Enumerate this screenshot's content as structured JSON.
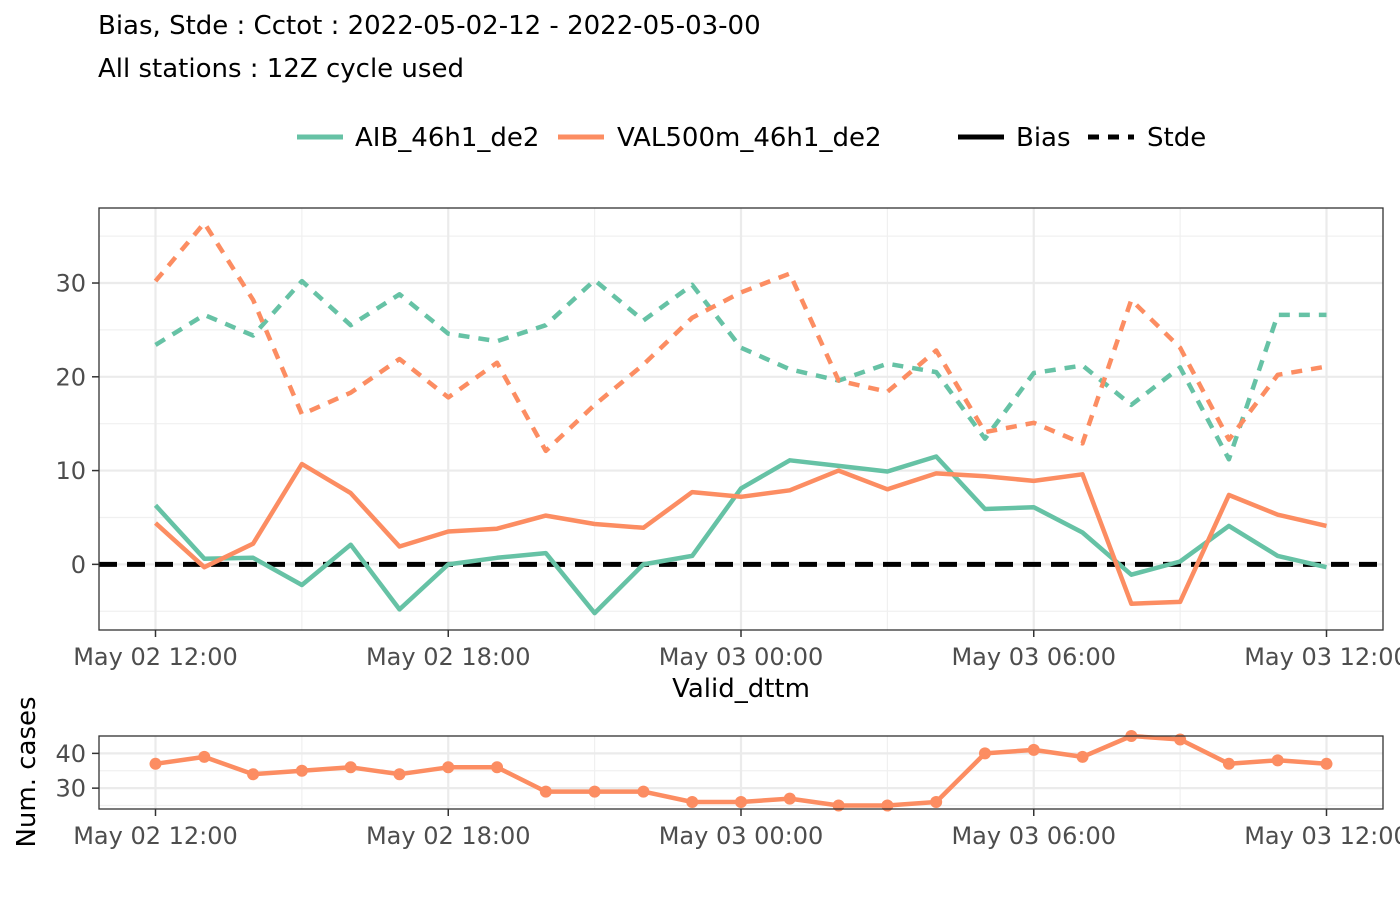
{
  "header": {
    "title": "Bias, Stde : Cctot : 2022-05-02-12 - 2022-05-03-00",
    "subtitle": "All stations : 12Z cycle used"
  },
  "legend": {
    "models": [
      {
        "label": "AIB_46h1_de2",
        "color": "#66C2A5"
      },
      {
        "label": "VAL500m_46h1_de2",
        "color": "#FC8D62"
      }
    ],
    "scores": [
      {
        "label": "Bias",
        "dash": "solid"
      },
      {
        "label": "Stde",
        "dash": "dashed"
      }
    ],
    "position": "top"
  },
  "chart_data": [
    {
      "type": "line",
      "x": [
        "May 02 12:00",
        "May 02 13:00",
        "May 02 14:00",
        "May 02 15:00",
        "May 02 16:00",
        "May 02 17:00",
        "May 02 18:00",
        "May 02 19:00",
        "May 02 20:00",
        "May 02 21:00",
        "May 02 22:00",
        "May 02 23:00",
        "May 03 00:00",
        "May 03 01:00",
        "May 03 02:00",
        "May 03 03:00",
        "May 03 04:00",
        "May 03 05:00",
        "May 03 06:00",
        "May 03 07:00",
        "May 03 08:00",
        "May 03 09:00",
        "May 03 10:00",
        "May 03 11:00",
        "May 03 12:00"
      ],
      "xticks": [
        "May 02 12:00",
        "May 02 18:00",
        "May 03 00:00",
        "May 03 06:00",
        "May 03 12:00"
      ],
      "xlabel": "Valid_dttm",
      "ylabel": "",
      "ylim": [
        -7,
        38
      ],
      "yticks": [
        0,
        10,
        20,
        30
      ],
      "grid": true,
      "reference_line": {
        "y": 0,
        "style": "dashed",
        "color": "#000000"
      },
      "series": [
        {
          "name": "AIB_46h1_de2",
          "score": "Bias",
          "color": "#66C2A5",
          "values": [
            6.3,
            0.6,
            0.7,
            -2.2,
            2.1,
            -4.8,
            0.0,
            0.7,
            1.2,
            -5.2,
            0.0,
            0.9,
            8.1,
            11.1,
            10.5,
            9.9,
            11.5,
            5.9,
            6.1,
            3.4,
            -1.1,
            0.3,
            4.1,
            0.9,
            -0.3
          ]
        },
        {
          "name": "VAL500m_46h1_de2",
          "score": "Bias",
          "color": "#FC8D62",
          "values": [
            4.4,
            -0.3,
            2.2,
            10.7,
            7.6,
            1.9,
            3.5,
            3.8,
            5.2,
            4.3,
            3.9,
            7.7,
            7.2,
            7.9,
            10.0,
            8.0,
            9.7,
            9.4,
            8.9,
            9.6,
            -4.2,
            -4.0,
            7.4,
            5.3,
            4.1
          ]
        },
        {
          "name": "AIB_46h1_de2",
          "score": "Stde",
          "color": "#66C2A5",
          "values": [
            23.4,
            26.6,
            24.4,
            30.2,
            25.5,
            28.8,
            24.6,
            23.8,
            25.5,
            30.3,
            26.0,
            29.8,
            23.1,
            20.8,
            19.6,
            21.4,
            20.5,
            13.4,
            20.4,
            21.2,
            17.0,
            21.0,
            11.2,
            26.6,
            26.6
          ]
        },
        {
          "name": "VAL500m_46h1_de2",
          "score": "Stde",
          "color": "#FC8D62",
          "values": [
            30.2,
            36.4,
            28.2,
            16.0,
            18.3,
            21.9,
            17.8,
            21.5,
            12.1,
            17.0,
            21.3,
            26.3,
            29.0,
            31.0,
            19.6,
            18.4,
            22.8,
            14.1,
            15.1,
            12.9,
            28.2,
            23.1,
            13.3,
            20.2,
            21.1
          ]
        }
      ]
    },
    {
      "type": "line",
      "markers": true,
      "x": [
        "May 02 12:00",
        "May 02 13:00",
        "May 02 14:00",
        "May 02 15:00",
        "May 02 16:00",
        "May 02 17:00",
        "May 02 18:00",
        "May 02 19:00",
        "May 02 20:00",
        "May 02 21:00",
        "May 02 22:00",
        "May 02 23:00",
        "May 03 00:00",
        "May 03 01:00",
        "May 03 02:00",
        "May 03 03:00",
        "May 03 04:00",
        "May 03 05:00",
        "May 03 06:00",
        "May 03 07:00",
        "May 03 08:00",
        "May 03 09:00",
        "May 03 10:00",
        "May 03 11:00",
        "May 03 12:00"
      ],
      "xticks": [
        "May 02 12:00",
        "May 02 18:00",
        "May 03 00:00",
        "May 03 06:00",
        "May 03 12:00"
      ],
      "xlabel": "",
      "ylabel": "Num. cases",
      "ylim": [
        24,
        45
      ],
      "yticks": [
        30,
        40
      ],
      "grid": true,
      "series": [
        {
          "color": "#FC8D62",
          "values": [
            37,
            39,
            34,
            35,
            36,
            34,
            36,
            36,
            29,
            29,
            29,
            26,
            26,
            27,
            25,
            25,
            26,
            40,
            41,
            39,
            45,
            44,
            37,
            38,
            37
          ]
        }
      ]
    }
  ]
}
